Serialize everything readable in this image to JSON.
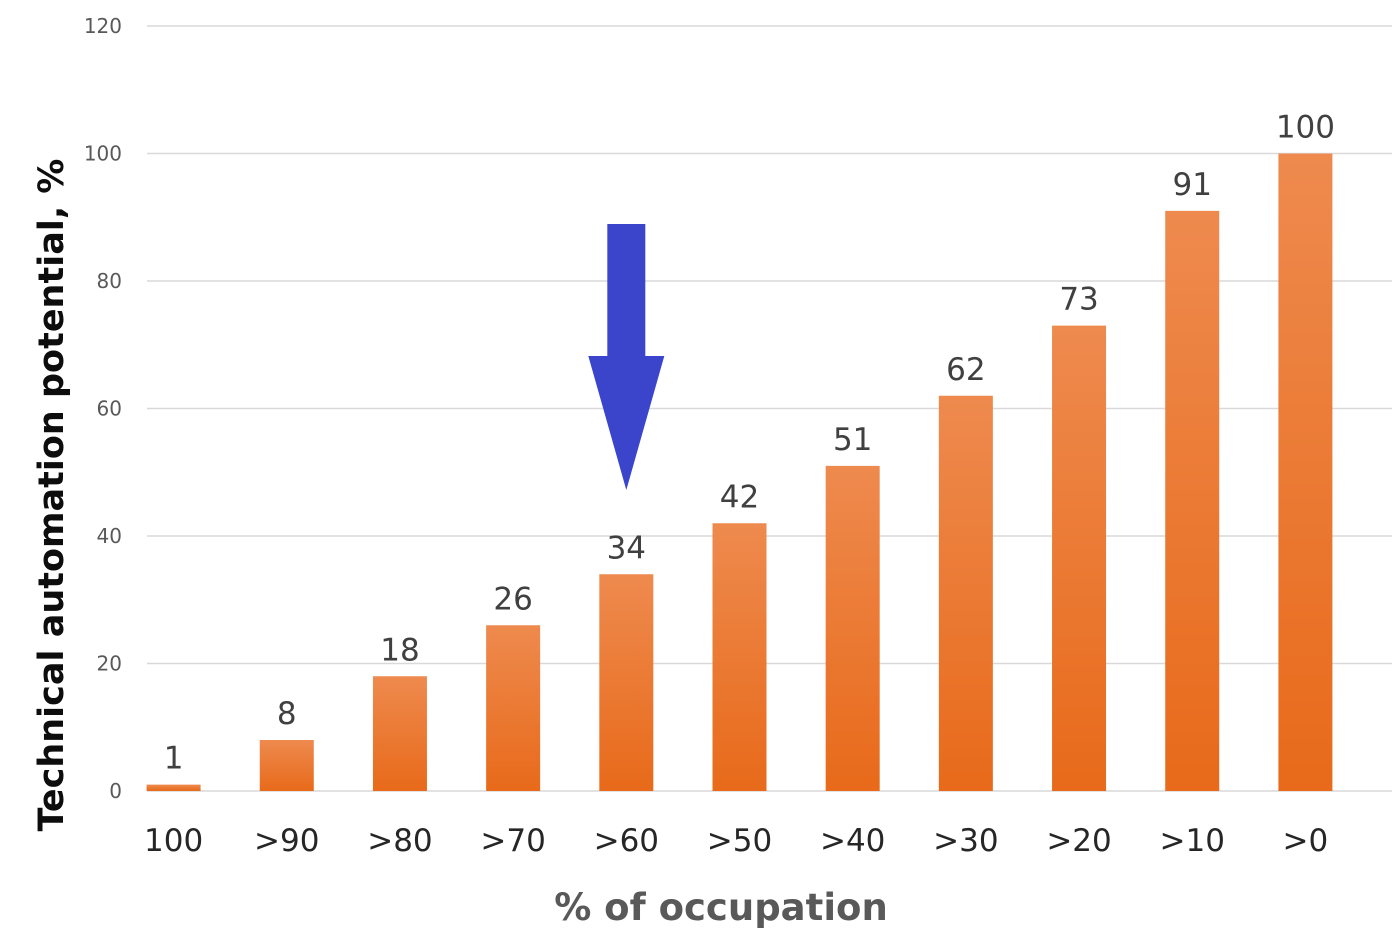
{
  "chart_data": {
    "type": "bar",
    "categories": [
      "100",
      ">90",
      ">80",
      ">70",
      ">60",
      ">50",
      ">40",
      ">30",
      ">20",
      ">10",
      ">0"
    ],
    "values": [
      1,
      8,
      18,
      26,
      34,
      42,
      51,
      62,
      73,
      91,
      100
    ],
    "data_labels": [
      "1",
      "8",
      "18",
      "26",
      "34",
      "42",
      "51",
      "62",
      "73",
      "91",
      "100"
    ],
    "title": "",
    "xlabel": "% of occupation",
    "ylabel": "Technical automation potential, %",
    "ylim": [
      0,
      120
    ],
    "yticks": [
      "0",
      "20",
      "40",
      "60",
      "80",
      "100",
      "120"
    ],
    "grid": true,
    "legend": "none",
    "bar_color_top": "#ee8a4e",
    "bar_color_bottom": "#e86a1a",
    "annotation": {
      "type": "down-arrow",
      "category": ">60",
      "color": "#3a45cc"
    }
  }
}
